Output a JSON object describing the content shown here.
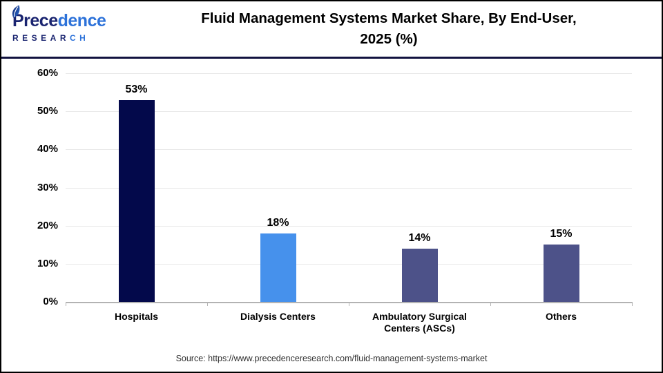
{
  "logo": {
    "word_part1": "Prece",
    "word_part2": "dence",
    "sub_part1": "RESEAR",
    "sub_part2": "CH"
  },
  "header": {
    "title_line1": "Fluid Management Systems Market Share, By End-User,",
    "title_line2": "2025 (%)"
  },
  "chart_data": {
    "type": "bar",
    "title": "Fluid Management Systems Market Share, By End-User, 2025 (%)",
    "categories": [
      "Hospitals",
      "Dialysis Centers",
      "Ambulatory Surgical Centers (ASCs)",
      "Others"
    ],
    "values": [
      53,
      18,
      14,
      15
    ],
    "value_labels": [
      "53%",
      "18%",
      "14%",
      "15%"
    ],
    "bar_colors": [
      "#03094b",
      "#4691ec",
      "#4d5289",
      "#4d5289"
    ],
    "yticks": [
      0,
      10,
      20,
      30,
      40,
      50,
      60
    ],
    "ytick_labels": [
      "0%",
      "10%",
      "20%",
      "30%",
      "40%",
      "50%",
      "60%"
    ],
    "ylim": [
      0,
      60
    ],
    "grid": true,
    "legend": false,
    "xlabel": "",
    "ylabel": ""
  },
  "source": {
    "text": "Source: https://www.precedenceresearch.com/fluid-management-systems-market"
  },
  "colors": {
    "header_rule": "#11123f",
    "axis_line": "#b3b3b3",
    "gridline": "#e8e8e8",
    "logo_navy": "#1a2470",
    "logo_blue": "#2d72d9",
    "bar_navy": "#03094b",
    "bar_blue": "#4691ec",
    "bar_slate": "#4d5289"
  }
}
